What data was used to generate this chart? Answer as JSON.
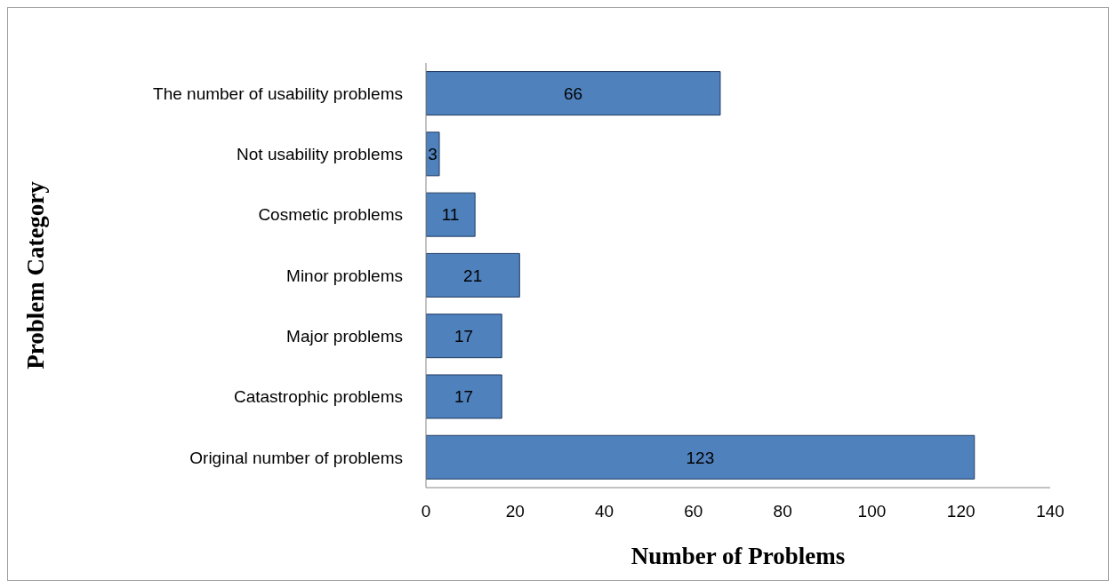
{
  "chart_data": {
    "type": "bar",
    "orientation": "horizontal",
    "xlabel": "Number of Problems",
    "ylabel": "Problem  Category",
    "categories": [
      "The number of usability problems",
      "Not usability problems",
      "Cosmetic problems",
      "Minor problems",
      "Major problems",
      "Catastrophic problems",
      "Original number of problems"
    ],
    "values": [
      66,
      3,
      11,
      21,
      17,
      17,
      123
    ],
    "color": "#4f81bd",
    "xlim": [
      0,
      140
    ],
    "xticks": [
      0,
      20,
      40,
      60,
      80,
      100,
      120,
      140
    ],
    "grid": false,
    "data_labels": true
  }
}
